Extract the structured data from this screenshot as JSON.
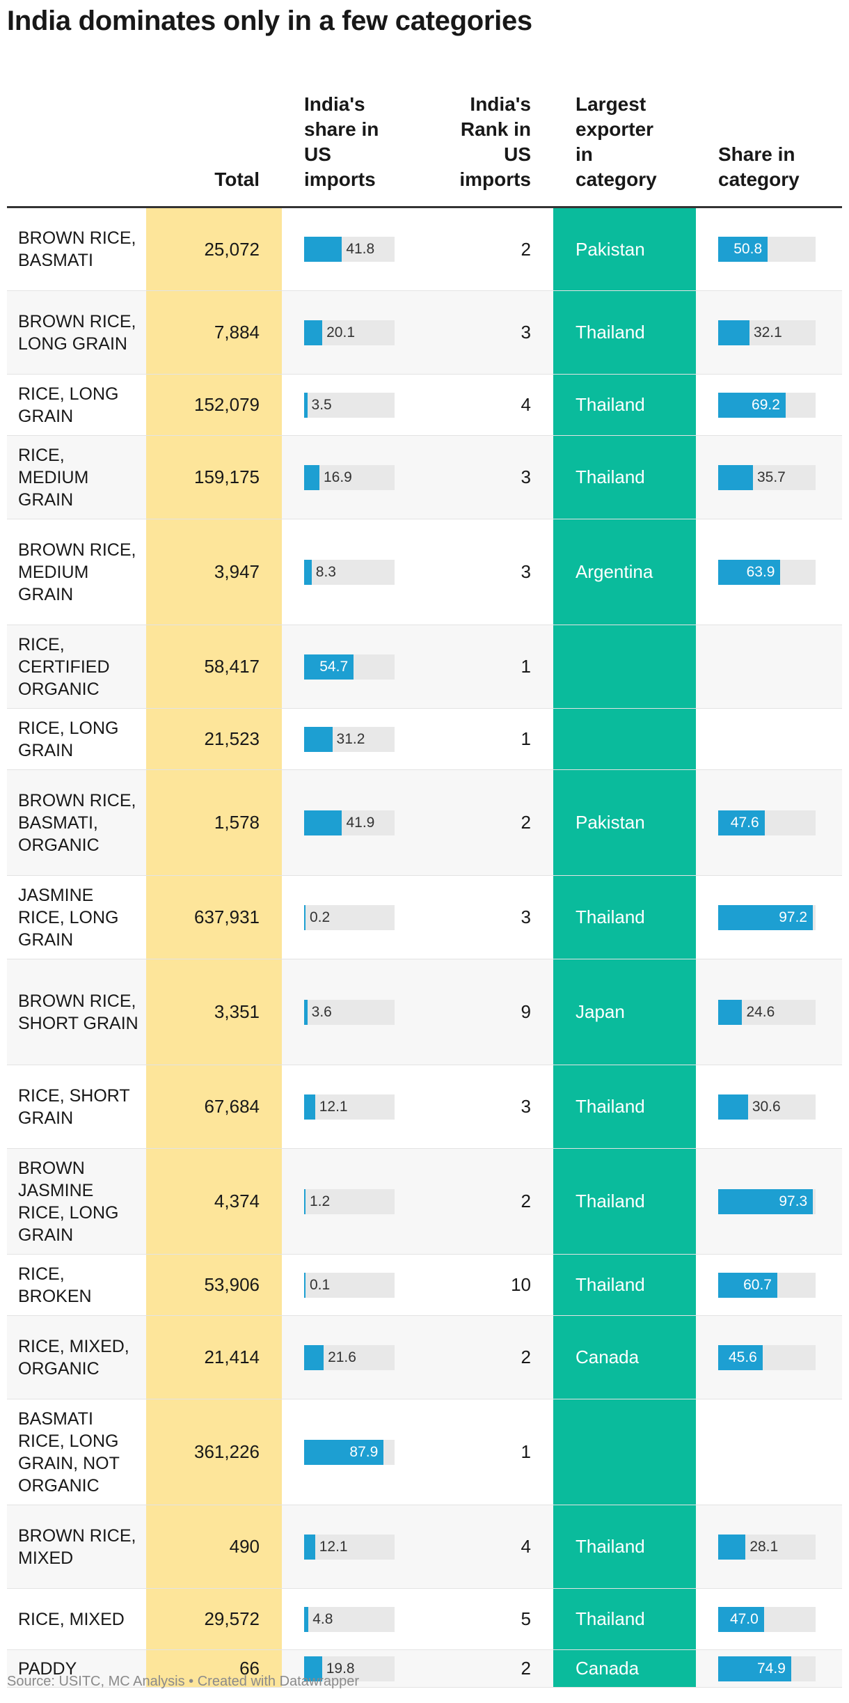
{
  "chart_data": {
    "type": "table",
    "title": "India dominates only in a few categories",
    "columns": [
      "",
      "Total",
      "India's share in US imports",
      "India's Rank in US imports",
      "Largest exporter in category",
      "Share in category"
    ],
    "rows": [
      {
        "category": "BROWN RICE, BASMATI",
        "total": "25,072",
        "india_share": 41.8,
        "rank": 2,
        "exporter": "Pakistan",
        "exporter_share": 50.8
      },
      {
        "category": "BROWN RICE, LONG GRAIN",
        "total": "7,884",
        "india_share": 20.1,
        "rank": 3,
        "exporter": "Thailand",
        "exporter_share": 32.1
      },
      {
        "category": "RICE, LONG GRAIN",
        "total": "152,079",
        "india_share": 3.5,
        "rank": 4,
        "exporter": "Thailand",
        "exporter_share": 69.2
      },
      {
        "category": "RICE, MEDIUM GRAIN",
        "total": "159,175",
        "india_share": 16.9,
        "rank": 3,
        "exporter": "Thailand",
        "exporter_share": 35.7
      },
      {
        "category": "BROWN RICE, MEDIUM GRAIN",
        "total": "3,947",
        "india_share": 8.3,
        "rank": 3,
        "exporter": "Argentina",
        "exporter_share": 63.9
      },
      {
        "category": "RICE, CERTIFIED ORGANIC",
        "total": "58,417",
        "india_share": 54.7,
        "rank": 1,
        "exporter": "",
        "exporter_share": null
      },
      {
        "category": "RICE, LONG GRAIN",
        "total": "21,523",
        "india_share": 31.2,
        "rank": 1,
        "exporter": "",
        "exporter_share": null
      },
      {
        "category": "BROWN RICE, BASMATI, ORGANIC",
        "total": "1,578",
        "india_share": 41.9,
        "rank": 2,
        "exporter": "Pakistan",
        "exporter_share": 47.6
      },
      {
        "category": "JASMINE RICE, LONG GRAIN",
        "total": "637,931",
        "india_share": 0.2,
        "rank": 3,
        "exporter": "Thailand",
        "exporter_share": 97.2
      },
      {
        "category": "BROWN RICE, SHORT GRAIN",
        "total": "3,351",
        "india_share": 3.6,
        "rank": 9,
        "exporter": "Japan",
        "exporter_share": 24.6
      },
      {
        "category": "RICE, SHORT GRAIN",
        "total": "67,684",
        "india_share": 12.1,
        "rank": 3,
        "exporter": "Thailand",
        "exporter_share": 30.6
      },
      {
        "category": "BROWN JASMINE RICE, LONG GRAIN",
        "total": "4,374",
        "india_share": 1.2,
        "rank": 2,
        "exporter": "Thailand",
        "exporter_share": 97.3
      },
      {
        "category": "RICE, BROKEN",
        "total": "53,906",
        "india_share": 0.1,
        "rank": 10,
        "exporter": "Thailand",
        "exporter_share": 60.7
      },
      {
        "category": "RICE, MIXED, ORGANIC",
        "total": "21,414",
        "india_share": 21.6,
        "rank": 2,
        "exporter": "Canada",
        "exporter_share": 45.6
      },
      {
        "category": "BASMATI RICE, LONG GRAIN, NOT ORGANIC",
        "total": "361,226",
        "india_share": 87.9,
        "rank": 1,
        "exporter": "",
        "exporter_share": null
      },
      {
        "category": "BROWN RICE, MIXED",
        "total": "490",
        "india_share": 12.1,
        "rank": 4,
        "exporter": "Thailand",
        "exporter_share": 28.1
      },
      {
        "category": "RICE, MIXED",
        "total": "29,572",
        "india_share": 4.8,
        "rank": 5,
        "exporter": "Thailand",
        "exporter_share": 47.0
      },
      {
        "category": "PADDY",
        "total": "66",
        "india_share": 19.8,
        "rank": 2,
        "exporter": "Canada",
        "exporter_share": 74.9
      }
    ],
    "bar_max": 100,
    "source": "Source: USITC, MC Analysis • Created with Datawrapper"
  },
  "colors": {
    "total_column": "#fde59a",
    "exporter_column": "#0abb9c",
    "bar": "#1d9fd2",
    "bar_track": "#e8e8e8"
  }
}
